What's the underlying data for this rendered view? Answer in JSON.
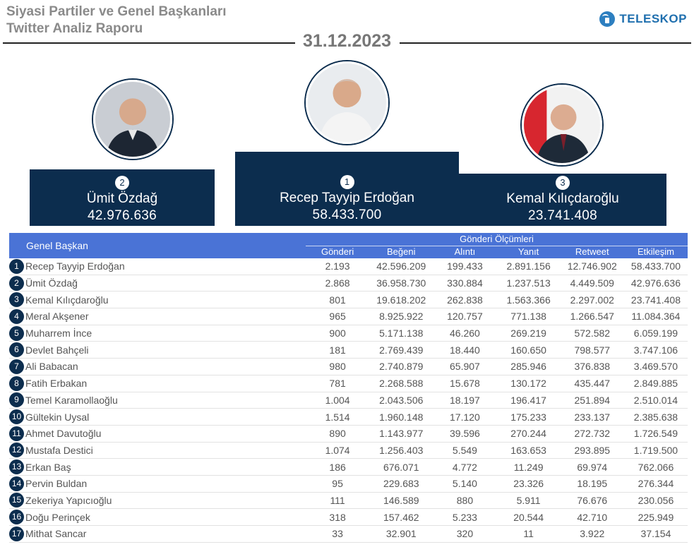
{
  "header": {
    "title_line1": "Siyasi Partiler ve Genel Başkanları",
    "title_line2": "Twitter Analiz Raporu",
    "logo_text": "TELESKOP",
    "date": "31.12.2023"
  },
  "podium": [
    {
      "rank": "2",
      "name": "Ümit Özdağ",
      "value": "42.976.636"
    },
    {
      "rank": "1",
      "name": "Recep Tayyip Erdoğan",
      "value": "58.433.700"
    },
    {
      "rank": "3",
      "name": "Kemal Kılıçdaroğlu",
      "value": "23.741.408"
    }
  ],
  "table": {
    "leader_header": "Genel Başkan",
    "group_header": "Gönderi Ölçümleri",
    "columns": [
      "Gönderi",
      "Beğeni",
      "Alıntı",
      "Yanıt",
      "Retweet",
      "Etkileşim"
    ],
    "rows": [
      {
        "rank": "1",
        "name": "Recep Tayyip Erdoğan",
        "values": [
          "2.193",
          "42.596.209",
          "199.433",
          "2.891.156",
          "12.746.902",
          "58.433.700"
        ]
      },
      {
        "rank": "2",
        "name": "Ümit Özdağ",
        "values": [
          "2.868",
          "36.958.730",
          "330.884",
          "1.237.513",
          "4.449.509",
          "42.976.636"
        ]
      },
      {
        "rank": "3",
        "name": "Kemal Kılıçdaroğlu",
        "values": [
          "801",
          "19.618.202",
          "262.838",
          "1.563.366",
          "2.297.002",
          "23.741.408"
        ]
      },
      {
        "rank": "4",
        "name": "Meral Akşener",
        "values": [
          "965",
          "8.925.922",
          "120.757",
          "771.138",
          "1.266.547",
          "11.084.364"
        ]
      },
      {
        "rank": "5",
        "name": "Muharrem İnce",
        "values": [
          "900",
          "5.171.138",
          "46.260",
          "269.219",
          "572.582",
          "6.059.199"
        ]
      },
      {
        "rank": "6",
        "name": "Devlet Bahçeli",
        "values": [
          "181",
          "2.769.439",
          "18.440",
          "160.650",
          "798.577",
          "3.747.106"
        ]
      },
      {
        "rank": "7",
        "name": "Ali Babacan",
        "values": [
          "980",
          "2.740.879",
          "65.907",
          "285.946",
          "376.838",
          "3.469.570"
        ]
      },
      {
        "rank": "8",
        "name": "Fatih Erbakan",
        "values": [
          "781",
          "2.268.588",
          "15.678",
          "130.172",
          "435.447",
          "2.849.885"
        ]
      },
      {
        "rank": "9",
        "name": "Temel Karamollaoğlu",
        "values": [
          "1.004",
          "2.043.506",
          "18.197",
          "196.417",
          "251.894",
          "2.510.014"
        ]
      },
      {
        "rank": "10",
        "name": "Gültekin Uysal",
        "values": [
          "1.514",
          "1.960.148",
          "17.120",
          "175.233",
          "233.137",
          "2.385.638"
        ]
      },
      {
        "rank": "11",
        "name": "Ahmet Davutoğlu",
        "values": [
          "890",
          "1.143.977",
          "39.596",
          "270.244",
          "272.732",
          "1.726.549"
        ]
      },
      {
        "rank": "12",
        "name": "Mustafa Destici",
        "values": [
          "1.074",
          "1.256.403",
          "5.549",
          "163.653",
          "293.895",
          "1.719.500"
        ]
      },
      {
        "rank": "13",
        "name": "Erkan Baş",
        "values": [
          "186",
          "676.071",
          "4.772",
          "11.249",
          "69.974",
          "762.066"
        ]
      },
      {
        "rank": "14",
        "name": "Pervin Buldan",
        "values": [
          "95",
          "229.683",
          "5.140",
          "23.326",
          "18.195",
          "276.344"
        ]
      },
      {
        "rank": "15",
        "name": "Zekeriya Yapıcıoğlu",
        "values": [
          "111",
          "146.589",
          "880",
          "5.911",
          "76.676",
          "230.056"
        ]
      },
      {
        "rank": "16",
        "name": "Doğu Perinçek",
        "values": [
          "318",
          "157.462",
          "5.233",
          "20.544",
          "42.710",
          "225.949"
        ]
      },
      {
        "rank": "17",
        "name": "Mithat Sancar",
        "values": [
          "33",
          "32.901",
          "320",
          "11",
          "3.922",
          "37.154"
        ]
      }
    ]
  }
}
